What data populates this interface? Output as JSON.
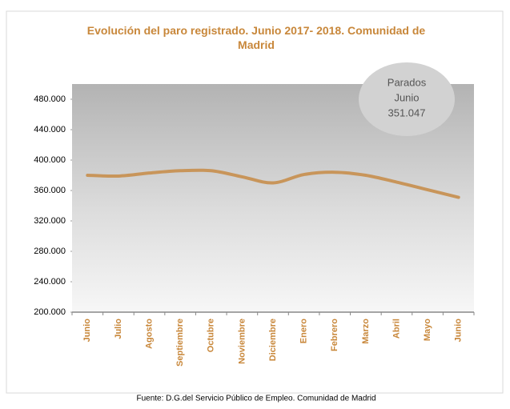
{
  "chart_data": {
    "type": "line",
    "title": "Evolución del paro registrado. Junio 2017- 2018. Comunidad de Madrid",
    "categories": [
      "Junio",
      "Julio",
      "Agosto",
      "Septiembre",
      "Octubre",
      "Noviembre",
      "Diciembre",
      "Enero",
      "Febrero",
      "Marzo",
      "Abril",
      "Mayo",
      "Junio"
    ],
    "series": [
      {
        "name": "Parados",
        "color": "#c8955a",
        "values": [
          380000,
          379000,
          383000,
          386000,
          386000,
          378000,
          370000,
          381000,
          384000,
          380000,
          371000,
          361000,
          351047
        ]
      }
    ],
    "ylim": [
      200000,
      500000
    ],
    "yticks": [
      {
        "value": 200000,
        "label": "200.000"
      },
      {
        "value": 240000,
        "label": "240.000"
      },
      {
        "value": 280000,
        "label": "280.000"
      },
      {
        "value": 320000,
        "label": "320.000"
      },
      {
        "value": 360000,
        "label": "360.000"
      },
      {
        "value": 400000,
        "label": "400.000"
      },
      {
        "value": 440000,
        "label": "440.000"
      },
      {
        "value": 480000,
        "label": "480.000"
      }
    ],
    "annotation": [
      "Parados",
      "Junio",
      "351.047"
    ],
    "source": "Fuente: D.G.del Servicio Público de Empleo. Comunidad  de Madrid"
  }
}
